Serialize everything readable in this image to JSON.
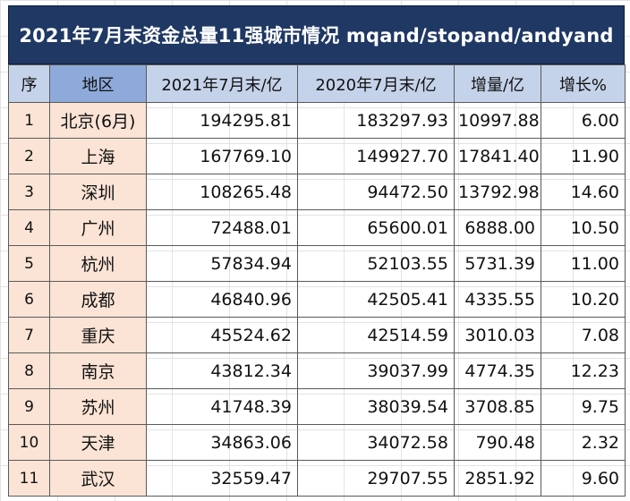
{
  "title": "2021年7月末资金总量11强城市情况 mqand/stopand/andyand",
  "headers": [
    "序",
    "地区",
    "2021年7月末/亿",
    "2020年7月末/亿",
    "增量/亿",
    "增长%"
  ],
  "rows": [
    {
      "idx": "1",
      "region": "北京(6月)",
      "y2021": "194295.81",
      "y2020": "183297.93",
      "delta": "10997.88",
      "growth": "6.00"
    },
    {
      "idx": "2",
      "region": "上海",
      "y2021": "167769.10",
      "y2020": "149927.70",
      "delta": "17841.40",
      "growth": "11.90"
    },
    {
      "idx": "3",
      "region": "深圳",
      "y2021": "108265.48",
      "y2020": "94472.50",
      "delta": "13792.98",
      "growth": "14.60"
    },
    {
      "idx": "4",
      "region": "广州",
      "y2021": "72488.01",
      "y2020": "65600.01",
      "delta": "6888.00",
      "growth": "10.50"
    },
    {
      "idx": "5",
      "region": "杭州",
      "y2021": "57834.94",
      "y2020": "52103.55",
      "delta": "5731.39",
      "growth": "11.00"
    },
    {
      "idx": "6",
      "region": "成都",
      "y2021": "46840.96",
      "y2020": "42505.41",
      "delta": "4335.55",
      "growth": "10.20"
    },
    {
      "idx": "7",
      "region": "重庆",
      "y2021": "45524.62",
      "y2020": "42514.59",
      "delta": "3010.03",
      "growth": "7.08"
    },
    {
      "idx": "8",
      "region": "南京",
      "y2021": "43812.34",
      "y2020": "39037.99",
      "delta": "4774.35",
      "growth": "12.23"
    },
    {
      "idx": "9",
      "region": "苏州",
      "y2021": "41748.39",
      "y2020": "38039.54",
      "delta": "3708.85",
      "growth": "9.75"
    },
    {
      "idx": "10",
      "region": "天津",
      "y2021": "34863.06",
      "y2020": "34072.58",
      "delta": "790.48",
      "growth": "2.32"
    },
    {
      "idx": "11",
      "region": "武汉",
      "y2021": "32559.47",
      "y2020": "29707.55",
      "delta": "2851.92",
      "growth": "9.60"
    }
  ],
  "colors": {
    "title_bg": "#1f3864",
    "header_bg": "#c5d3ea",
    "region_header_bg": "#8eaadb",
    "index_cell_bg": "#fbe4d5"
  }
}
